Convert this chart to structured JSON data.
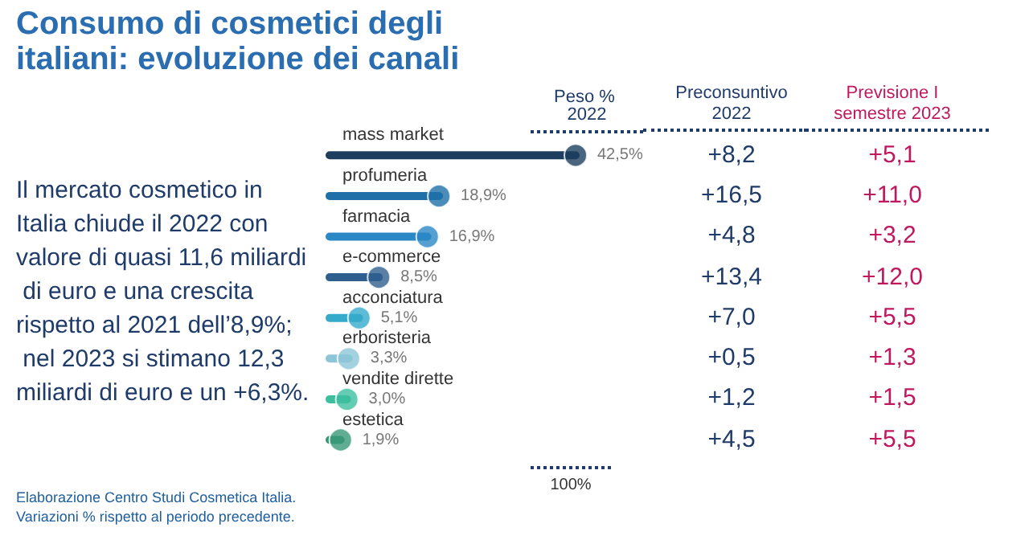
{
  "chart_data": [
    {
      "type": "lollipop",
      "orientation": "horizontal",
      "title": "Consumo di cosmetici degli italiani: evoluzione dei canali",
      "xlabel": "Peso % 2022",
      "categories": [
        "mass market",
        "profumeria",
        "farmacia",
        "e-commerce",
        "acconciatura",
        "erboristeria",
        "vendite dirette",
        "estetica"
      ],
      "values": [
        42.5,
        18.9,
        16.9,
        8.5,
        5.1,
        3.3,
        3.0,
        1.9
      ],
      "colors": [
        "#1d3e5e",
        "#1f6fa8",
        "#2a88c6",
        "#2f5f8e",
        "#36aacb",
        "#8cc6d8",
        "#3dbf9f",
        "#3a9878"
      ],
      "value_labels": [
        "42,5%",
        "18,9%",
        "16,9%",
        "8,5%",
        "5,1%",
        "3,3%",
        "3,0%",
        "1,9%"
      ],
      "marker": "circle",
      "annotations": [
        "Il mercato cosmetico in Italia chiude il 2022 con valore di quasi 11,6 miliardi di euro e una crescita rispetto al 2021 dell’8,9%; nel 2023 si stimano 12,3 miliardi di euro e un +6,3%.",
        "100%",
        "Elaborazione Centro Studi Cosmetica Italia.",
        "Variazioni % rispetto al periodo precedente."
      ]
    },
    {
      "type": "other",
      "title": "Preconsuntivo 2022",
      "color": "#1f3b6a",
      "annotations": [
        "+8,2",
        "+16,5",
        "+4,8",
        "+13,4",
        "+7,0",
        "+0,5",
        "+1,2",
        "+4,5"
      ]
    },
    {
      "type": "other",
      "title": "Previsione I semestre 2023",
      "color": "#c0185f",
      "annotations": [
        "+5,1",
        "+11,0",
        "+3,2",
        "+12,0",
        "+5,5",
        "+1,3",
        "+1,5",
        "+5,5"
      ]
    }
  ]
}
